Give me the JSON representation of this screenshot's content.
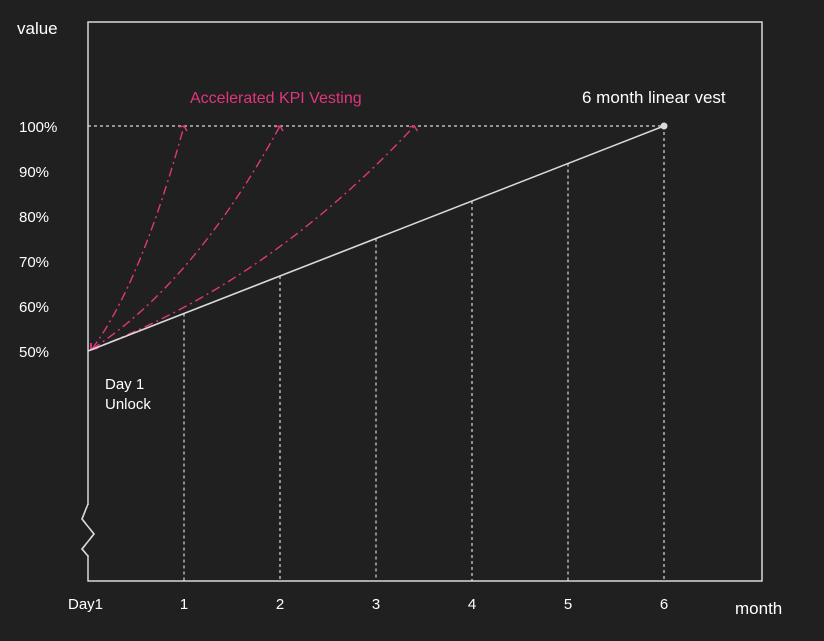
{
  "chart_data": {
    "type": "line",
    "ylabel": "value",
    "xlabel": "month",
    "x_ticks": [
      {
        "x": 0,
        "label": "Day1"
      },
      {
        "x": 1,
        "label": "1"
      },
      {
        "x": 2,
        "label": "2"
      },
      {
        "x": 3,
        "label": "3"
      },
      {
        "x": 4,
        "label": "4"
      },
      {
        "x": 5,
        "label": "5"
      },
      {
        "x": 6,
        "label": "6"
      }
    ],
    "y_ticks": [
      {
        "y": 50,
        "label": "50%"
      },
      {
        "y": 60,
        "label": "60%"
      },
      {
        "y": 70,
        "label": "70%"
      },
      {
        "y": 80,
        "label": "80%"
      },
      {
        "y": 90,
        "label": "90%"
      },
      {
        "y": 100,
        "label": "100%"
      }
    ],
    "xlim": [
      0,
      7
    ],
    "ylim": [
      0,
      100
    ],
    "axis_break": true,
    "grid": false,
    "linear_series": {
      "name": "6 month linear vest",
      "color": "#d9d9d9",
      "points": [
        [
          0,
          50
        ],
        [
          6,
          100
        ]
      ]
    },
    "accelerated_series": {
      "name": "Accelerated KPI Vesting",
      "color": "#e0357f",
      "style": "dash-dot",
      "curves": [
        {
          "end": [
            1.0,
            100
          ]
        },
        {
          "end": [
            2.0,
            100
          ]
        },
        {
          "end": [
            3.4,
            100
          ]
        }
      ]
    },
    "annotations": {
      "day1_line1": "Day 1",
      "day1_line2": "Unlock"
    }
  },
  "colors": {
    "background": "#202020",
    "axis": "#d9d9d9",
    "accent": "#e0357f",
    "text": "#ffffff"
  }
}
